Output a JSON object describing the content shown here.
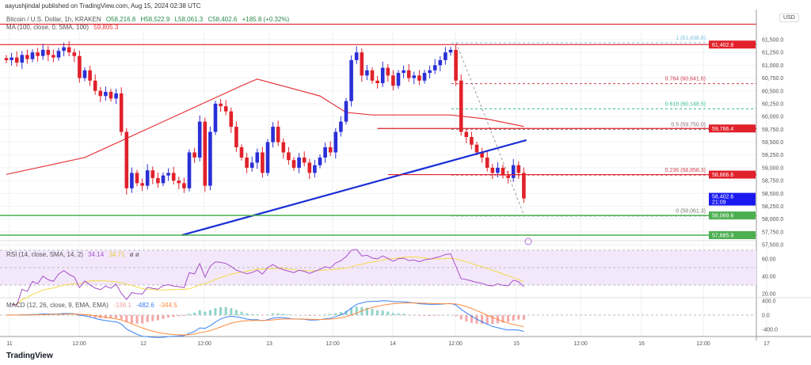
{
  "header": {
    "published": "aayushjindal published on TradingView.com, Aug 15, 2024 02:38 UTC"
  },
  "legend": {
    "symbol": "Bitcoin / U.S. Dollar, 1h, KRAKEN",
    "o": "O58,216.8",
    "h": "H58,522.9",
    "l": "L58,061.3",
    "c": "C58,402.6",
    "chg": "+185.8 (+0.32%)",
    "ma": "MA (100, close, 0, SMA, 100)",
    "ma_val": "59,805.3",
    "rsi": "RSI (14, close, SMA, 14, 2)",
    "rsi_val": "34.14",
    "rsi_ma": "34.71",
    "rsi_extra": "ø ø",
    "macd": "MACD (12, 26, close, 9, EMA, EMA)",
    "macd_hist": "-138.1",
    "macd_line": "-482.6",
    "macd_signal": "-344.5"
  },
  "currency": "USD",
  "brand": "TradingView",
  "colors": {
    "up": "#2a2fd6",
    "down": "#e0212a",
    "ma": "#e8373c",
    "trend": "#1a2fd6",
    "green": "#4caf50",
    "rsi": "#a64fc9",
    "rsi_ma": "#f5d94a",
    "macd": "#3b82f6",
    "signal": "#ff8a3d"
  },
  "chart_data": {
    "type": "candlestick",
    "title": "Bitcoin / U.S. Dollar, 1h, KRAKEN",
    "ylim": [
      57400,
      61900
    ],
    "y_ticks": [
      "61,500.0",
      "61,250.0",
      "61,000.0",
      "60,750.0",
      "60,500.0",
      "60,250.0",
      "60,000.0",
      "59,750.0",
      "59,500.0",
      "59,250.0",
      "59,000.0",
      "58,750.0",
      "58,500.0",
      "58,250.0",
      "58,000.0",
      "57,750.0",
      "57,500.0"
    ],
    "x_ticks": [
      "11",
      "12:00",
      "12",
      "12:00",
      "13",
      "12:00",
      "14",
      "12:00",
      "15",
      "12:00",
      "16",
      "12:00",
      "17"
    ],
    "closes": [
      61100,
      61150,
      61050,
      61200,
      61120,
      61250,
      61180,
      61300,
      61200,
      61150,
      61280,
      61350,
      61250,
      61180,
      60750,
      60900,
      60700,
      60500,
      60400,
      60480,
      60350,
      60450,
      59700,
      58600,
      58900,
      58700,
      58650,
      58950,
      58800,
      58700,
      58850,
      58900,
      58750,
      58700,
      58600,
      59300,
      59200,
      59900,
      58650,
      59700,
      60250,
      60200,
      60100,
      59800,
      59400,
      59200,
      59000,
      59100,
      59300,
      58900,
      59500,
      59800,
      59500,
      59300,
      59150,
      59000,
      59200,
      59100,
      58900,
      59050,
      59200,
      59400,
      59300,
      59700,
      59900,
      60300,
      61100,
      61250,
      60800,
      60900,
      60700,
      60650,
      60950,
      60800,
      60600,
      60850,
      60900,
      60750,
      60800,
      60700,
      60850,
      60900,
      61000,
      61100,
      61250,
      61300,
      60700,
      59700,
      59600,
      59450,
      59300,
      59200,
      59000,
      58900,
      59000,
      58850,
      58800,
      59050,
      58900,
      58402.6
    ],
    "ma100": [
      [
        0,
        58870
      ],
      [
        15,
        59200
      ],
      [
        30,
        59900
      ],
      [
        45,
        60600
      ],
      [
        48,
        60730
      ],
      [
        60,
        60400
      ],
      [
        65,
        60080
      ],
      [
        70,
        60030
      ],
      [
        85,
        60030
      ],
      [
        92,
        59950
      ],
      [
        99,
        59805
      ]
    ],
    "trendline": [
      [
        33.6,
        57686
      ],
      [
        99.5,
        59540
      ]
    ],
    "levels": [
      {
        "price": 61800,
        "label": "",
        "color": "#e0212a",
        "from": 0
      },
      {
        "price": 61402.8,
        "label": "61,402.8",
        "color": "#e0212a",
        "from": 0
      },
      {
        "price": 59766.4,
        "label": "59,766.4",
        "color": "#e0212a",
        "from": 71
      },
      {
        "price": 58866.6,
        "label": "58,866.6",
        "color": "#e0212a",
        "from": 73
      },
      {
        "price": 58069.6,
        "label": "58,069.6",
        "color": "#4caf50",
        "from": 0
      },
      {
        "price": 57685.9,
        "label": "57,685.9",
        "color": "#4caf50",
        "from": 0
      }
    ],
    "fib": [
      {
        "price": 61438.6,
        "label": "1 (61,438.6)",
        "color": "#7ec3e6"
      },
      {
        "price": 60641.6,
        "label": "0.764 (60,641.6)",
        "color": "#d04050"
      },
      {
        "price": 60148.5,
        "label": "0.618 (60,148.5)",
        "color": "#3cbf9a"
      },
      {
        "price": 59750.0,
        "label": "0.5 (59,750.0)",
        "color": "#8a6a7a"
      },
      {
        "price": 58858.3,
        "label": "0.236 (58,858.3)",
        "color": "#d04050"
      },
      {
        "price": 58061.3,
        "label": "0 (58,061.3)",
        "color": "#777"
      }
    ],
    "current": {
      "price": "58,402.6",
      "countdown": "21:09"
    },
    "rsi_ticks": [
      "60.00",
      "40.00",
      "20.00"
    ],
    "macd_ticks": [
      "400.0",
      "0.0",
      "-400.0"
    ]
  }
}
